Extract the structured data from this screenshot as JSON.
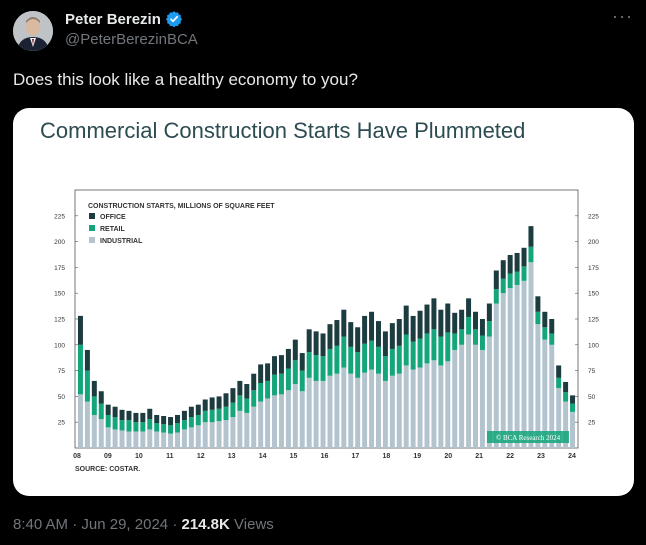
{
  "tweet": {
    "author_name": "Peter Berezin",
    "handle": "@PeterBerezinBCA",
    "text": "Does this look like a healthy economy to you?",
    "time": "8:40 AM",
    "date": "Jun 29, 2024",
    "views_count": "214.8K",
    "views_label": "Views",
    "more_icon": "···"
  },
  "colors": {
    "office": "#1d3c40",
    "retail": "#14a57a",
    "industrial": "#b4c4cf",
    "title": "#2d4c52"
  },
  "chart_data": {
    "type": "bar",
    "stacked": true,
    "title": "Commercial Construction Starts Have Plummeted",
    "ylabel": "CONSTRUCTION STARTS, MILLIONS OF SQUARE FEET",
    "ylim": [
      0,
      250
    ],
    "yticks": [
      25,
      50,
      75,
      100,
      125,
      150,
      175,
      200,
      225
    ],
    "xticks": [
      "08",
      "09",
      "10",
      "11",
      "12",
      "13",
      "14",
      "15",
      "16",
      "17",
      "18",
      "19",
      "20",
      "21",
      "22",
      "23",
      "24"
    ],
    "source": "SOURCE: COSTAR.",
    "watermark": "© BCA Research 2024",
    "legend": [
      "OFFICE",
      "RETAIL",
      "INDUSTRIAL"
    ],
    "series": [
      {
        "name": "INDUSTRIAL",
        "values": [
          52,
          45,
          32,
          28,
          20,
          18,
          17,
          16,
          16,
          16,
          18,
          16,
          15,
          14,
          15,
          18,
          20,
          22,
          25,
          25,
          26,
          27,
          30,
          36,
          34,
          40,
          45,
          48,
          51,
          52,
          56,
          62,
          55,
          68,
          65,
          65,
          70,
          72,
          78,
          72,
          68,
          73,
          76,
          72,
          65,
          70,
          72,
          80,
          76,
          78,
          82,
          85,
          80,
          84,
          95,
          100,
          110,
          100,
          95,
          108,
          140,
          150,
          155,
          158,
          162,
          180,
          120,
          105,
          100,
          58,
          45,
          35
        ]
      },
      {
        "name": "RETAIL",
        "values": [
          48,
          30,
          18,
          15,
          12,
          12,
          10,
          11,
          9,
          9,
          10,
          8,
          8,
          8,
          9,
          9,
          10,
          10,
          11,
          12,
          12,
          13,
          14,
          15,
          14,
          16,
          18,
          17,
          20,
          20,
          21,
          23,
          20,
          25,
          25,
          24,
          26,
          27,
          30,
          26,
          25,
          28,
          28,
          26,
          24,
          26,
          27,
          30,
          27,
          28,
          29,
          30,
          28,
          28,
          16,
          15,
          17,
          15,
          14,
          15,
          14,
          14,
          14,
          13,
          14,
          15,
          12,
          12,
          11,
          10,
          9,
          8
        ]
      },
      {
        "name": "OFFICE",
        "values": [
          28,
          20,
          15,
          12,
          10,
          10,
          10,
          9,
          9,
          9,
          10,
          8,
          8,
          8,
          8,
          9,
          10,
          10,
          11,
          12,
          12,
          13,
          14,
          14,
          14,
          16,
          18,
          17,
          18,
          18,
          19,
          20,
          17,
          22,
          23,
          22,
          24,
          25,
          26,
          24,
          24,
          27,
          28,
          25,
          24,
          25,
          26,
          28,
          25,
          27,
          28,
          30,
          26,
          28,
          20,
          19,
          18,
          17,
          16,
          17,
          18,
          18,
          18,
          18,
          18,
          20,
          15,
          15,
          14,
          12,
          10,
          8
        ]
      }
    ]
  }
}
